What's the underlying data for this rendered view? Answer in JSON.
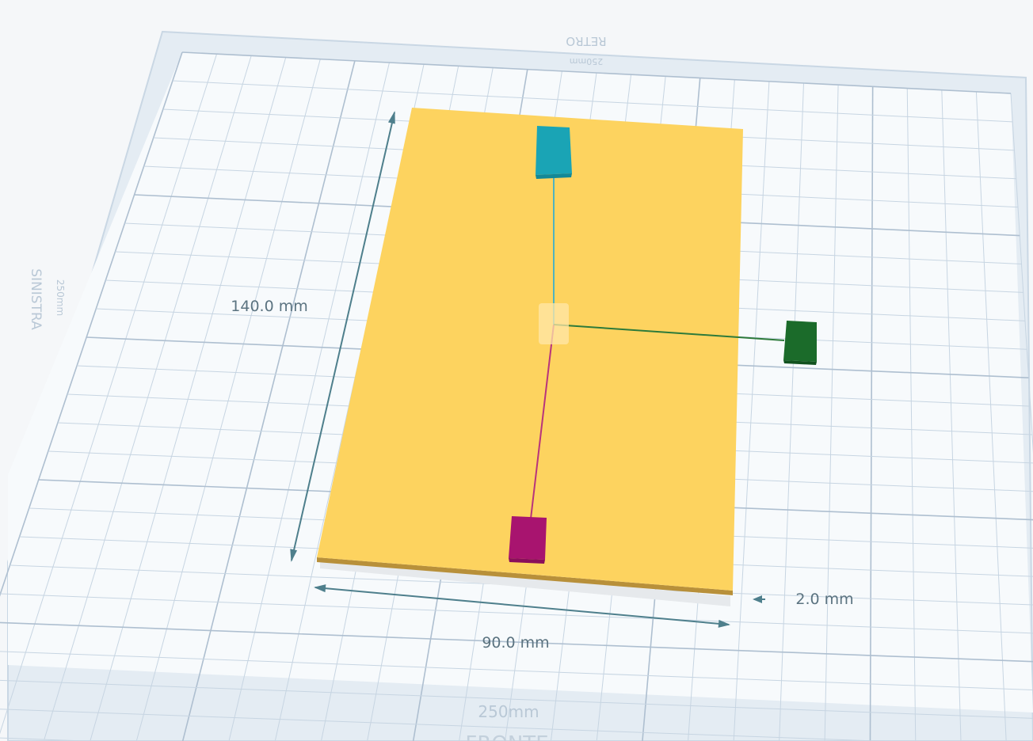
{
  "workplane": {
    "back_label": "RETRO",
    "back_size_label": "250mm",
    "left_label": "SINISTRA",
    "left_size_label": "250mm",
    "front_label": "FRONTE",
    "front_size_label": "250mm"
  },
  "object": {
    "color": "#fdd35f",
    "shadow_color": "#d9b050"
  },
  "dimensions": {
    "length_label": "140.0 mm",
    "width_label": "90.0 mm",
    "height_label": "2.0 mm"
  },
  "handles": {
    "top_color": "#1aa4b5",
    "bottom_color": "#a8146f",
    "right_color": "#1b6b2a"
  }
}
